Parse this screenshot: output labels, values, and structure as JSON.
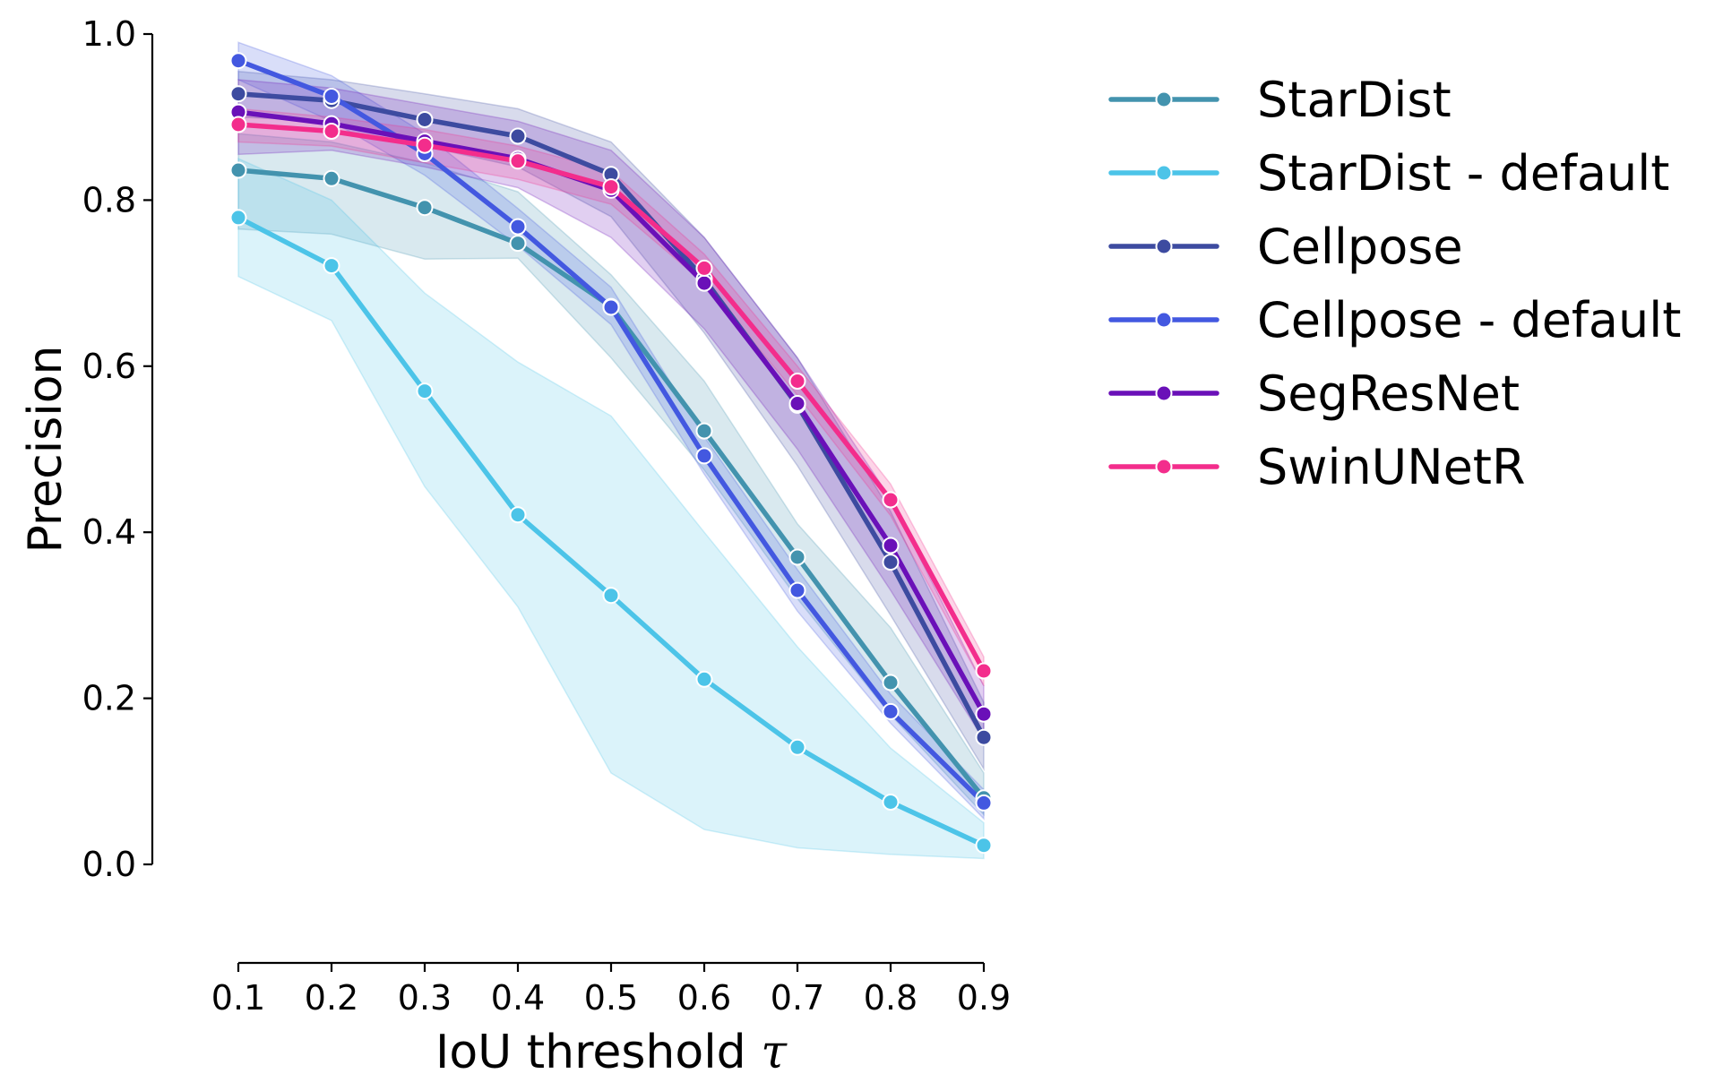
{
  "chart_data": {
    "type": "line",
    "title": "",
    "xlabel": "IoU threshold",
    "xlabel_symbol": "τ",
    "ylabel": "Precision",
    "x": [
      0.1,
      0.2,
      0.3,
      0.4,
      0.5,
      0.6,
      0.7,
      0.8,
      0.9
    ],
    "x_tick_labels": [
      "0.1",
      "0.2",
      "0.3",
      "0.4",
      "0.5",
      "0.6",
      "0.7",
      "0.8",
      "0.9"
    ],
    "y_ticks": [
      0.0,
      0.2,
      0.4,
      0.6,
      0.8,
      1.0
    ],
    "y_tick_labels": [
      "0.0",
      "0.2",
      "0.4",
      "0.6",
      "0.8",
      "1.0"
    ],
    "xlim": [
      0.1,
      0.9
    ],
    "ylim": [
      0.0,
      1.0
    ],
    "grid": false,
    "legend_position": "outside-right",
    "series": [
      {
        "name": "StarDist",
        "color": "#4393ae",
        "values": [
          0.836,
          0.826,
          0.791,
          0.748,
          0.672,
          0.522,
          0.37,
          0.219,
          0.08
        ],
        "ci_low": [
          0.765,
          0.759,
          0.729,
          0.73,
          0.61,
          0.475,
          0.32,
          0.18,
          0.06
        ],
        "ci_high": [
          0.88,
          0.87,
          0.845,
          0.81,
          0.71,
          0.582,
          0.41,
          0.285,
          0.11
        ]
      },
      {
        "name": "StarDist - default",
        "color": "#4cc4e8",
        "values": [
          0.779,
          0.721,
          0.57,
          0.421,
          0.324,
          0.223,
          0.141,
          0.075,
          0.023
        ],
        "ci_low": [
          0.708,
          0.655,
          0.455,
          0.31,
          0.11,
          0.042,
          0.02,
          0.012,
          0.007
        ],
        "ci_high": [
          0.85,
          0.8,
          0.688,
          0.605,
          0.54,
          0.4,
          0.262,
          0.14,
          0.05
        ]
      },
      {
        "name": "Cellpose",
        "color": "#3d4ba0",
        "values": [
          0.928,
          0.92,
          0.897,
          0.877,
          0.831,
          0.705,
          0.553,
          0.364,
          0.153
        ],
        "ci_low": [
          0.9,
          0.895,
          0.865,
          0.84,
          0.78,
          0.64,
          0.48,
          0.3,
          0.115
        ],
        "ci_high": [
          0.955,
          0.945,
          0.928,
          0.91,
          0.87,
          0.755,
          0.61,
          0.425,
          0.195
        ]
      },
      {
        "name": "Cellpose - default",
        "color": "#4358e0",
        "values": [
          0.968,
          0.925,
          0.856,
          0.768,
          0.671,
          0.492,
          0.33,
          0.184,
          0.074
        ],
        "ci_low": [
          0.945,
          0.895,
          0.83,
          0.745,
          0.65,
          0.47,
          0.305,
          0.17,
          0.055
        ],
        "ci_high": [
          0.99,
          0.95,
          0.88,
          0.79,
          0.695,
          0.515,
          0.355,
          0.205,
          0.09
        ]
      },
      {
        "name": "SegResNet",
        "color": "#6a10b8",
        "values": [
          0.906,
          0.892,
          0.871,
          0.85,
          0.812,
          0.7,
          0.555,
          0.384,
          0.181
        ],
        "ci_low": [
          0.855,
          0.86,
          0.84,
          0.815,
          0.755,
          0.645,
          0.5,
          0.33,
          0.15
        ],
        "ci_high": [
          0.945,
          0.935,
          0.915,
          0.895,
          0.86,
          0.755,
          0.61,
          0.44,
          0.215
        ]
      },
      {
        "name": "SwinUNetR",
        "color": "#f32d8c",
        "values": [
          0.891,
          0.883,
          0.866,
          0.847,
          0.816,
          0.718,
          0.582,
          0.439,
          0.233
        ],
        "ci_low": [
          0.87,
          0.865,
          0.845,
          0.825,
          0.795,
          0.7,
          0.565,
          0.42,
          0.215
        ],
        "ci_high": [
          0.91,
          0.9,
          0.885,
          0.865,
          0.835,
          0.735,
          0.6,
          0.458,
          0.25
        ]
      }
    ]
  }
}
